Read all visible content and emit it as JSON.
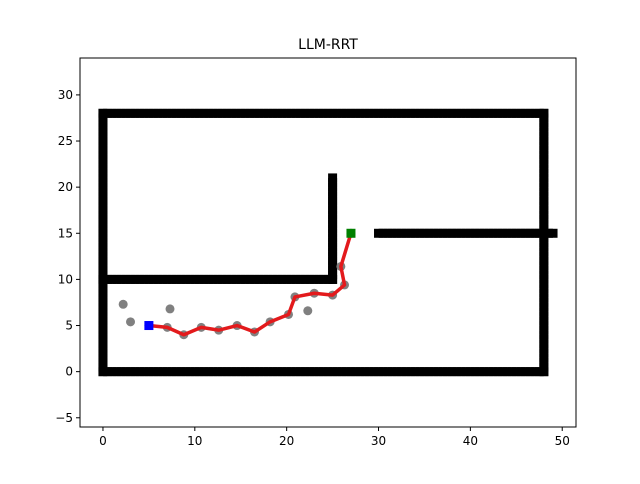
{
  "chart_data": {
    "type": "scatter",
    "title": "LLM-RRT",
    "xlabel": "",
    "ylabel": "",
    "xlim": [
      -2.5,
      51.5
    ],
    "ylim": [
      -6,
      34
    ],
    "x_ticks": [
      0,
      10,
      20,
      30,
      40,
      50
    ],
    "y_ticks": [
      -5,
      0,
      5,
      10,
      15,
      20,
      25,
      30
    ],
    "grid": false,
    "obstacle_color": "#000000",
    "path_color": "#e31a1c",
    "node_color": "#808080",
    "start_color": "#0000ff",
    "goal_color": "#008000",
    "obstacle_segments": [
      {
        "x": [
          0,
          48
        ],
        "y": [
          0,
          0
        ]
      },
      {
        "x": [
          0,
          48
        ],
        "y": [
          28,
          28
        ]
      },
      {
        "x": [
          0,
          0
        ],
        "y": [
          0,
          28
        ]
      },
      {
        "x": [
          48,
          48
        ],
        "y": [
          0,
          28
        ]
      },
      {
        "x": [
          0,
          25
        ],
        "y": [
          10,
          10
        ]
      },
      {
        "x": [
          25,
          25
        ],
        "y": [
          10,
          21
        ]
      },
      {
        "x": [
          30,
          49
        ],
        "y": [
          15,
          15
        ]
      }
    ],
    "tree_nodes": {
      "x": [
        2.2,
        3.0,
        7.3,
        22.3
      ],
      "y": [
        7.3,
        5.4,
        6.8,
        6.6
      ]
    },
    "path": {
      "x": [
        5.0,
        7.0,
        8.8,
        10.7,
        12.6,
        14.6,
        16.5,
        18.2,
        20.2,
        20.9,
        23.0,
        25.0,
        26.3,
        25.9,
        27.0
      ],
      "y": [
        5.0,
        4.8,
        4.0,
        4.8,
        4.5,
        5.0,
        4.3,
        5.4,
        6.2,
        8.1,
        8.5,
        8.3,
        9.4,
        11.4,
        15.0
      ]
    },
    "start": {
      "x": 5.0,
      "y": 5.0
    },
    "goal": {
      "x": 27.0,
      "y": 15.0
    }
  }
}
